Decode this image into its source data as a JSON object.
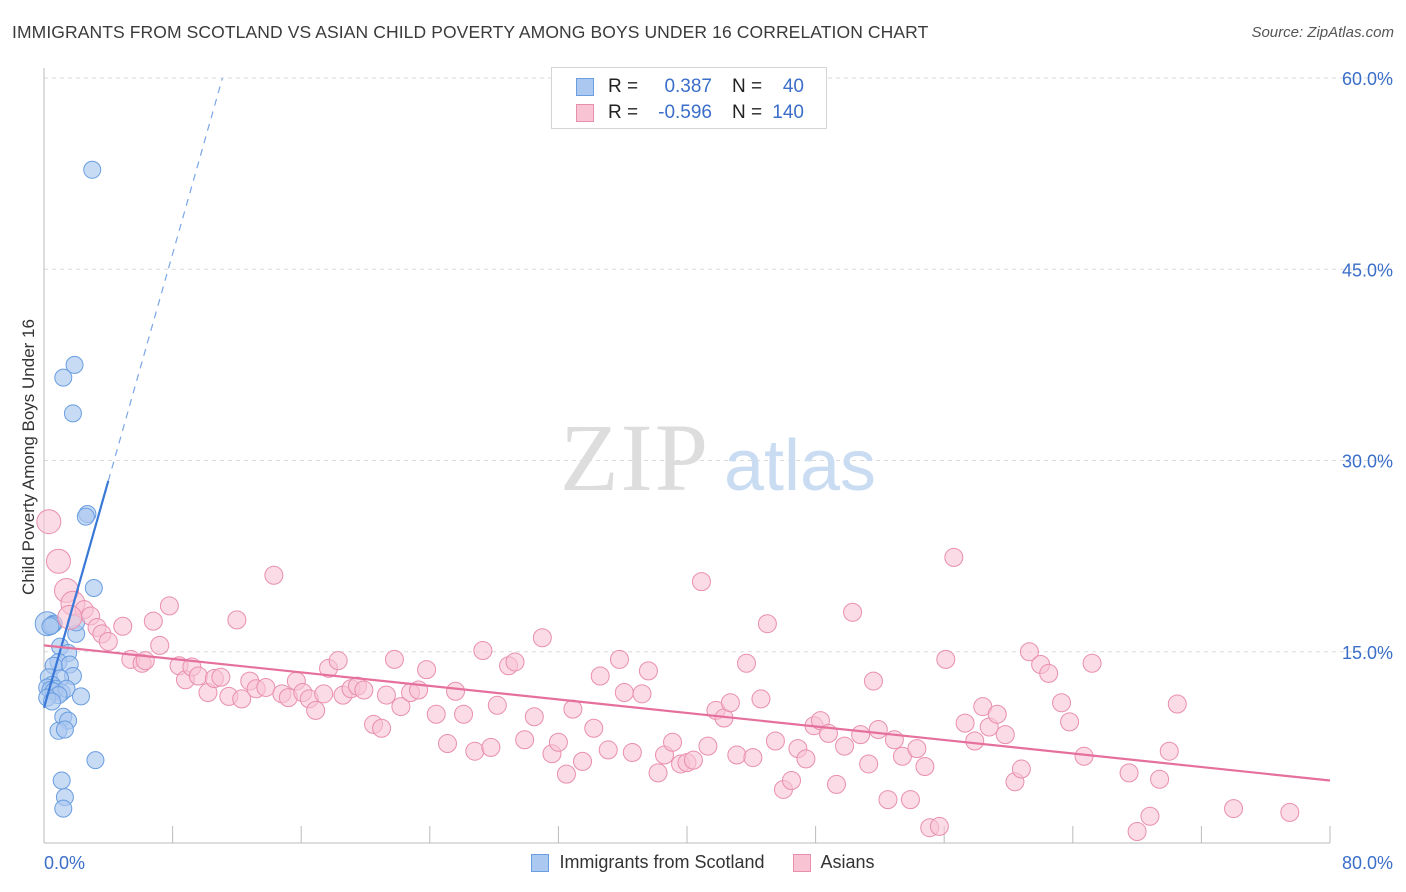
{
  "title": "IMMIGRANTS FROM SCOTLAND VS ASIAN CHILD POVERTY AMONG BOYS UNDER 16 CORRELATION CHART",
  "source": "Source: ZipAtlas.com",
  "watermark": {
    "zip": "ZIP",
    "atlas": "atlas"
  },
  "legend": {
    "rows": [
      {
        "r_label": "R =",
        "r_value": "0.387",
        "n_label": "N =",
        "n_value": "40",
        "color": "#aac8f0",
        "border": "#6a9ee0"
      },
      {
        "r_label": "R =",
        "r_value": "-0.596",
        "n_label": "N =",
        "n_value": "140",
        "color": "#f8c3d3",
        "border": "#e98fae"
      }
    ]
  },
  "bottom_legend": [
    {
      "label": "Immigrants from Scotland",
      "color": "#aac8f0",
      "border": "#6a9ee0"
    },
    {
      "label": "Asians",
      "color": "#f8c3d3",
      "border": "#e98fae"
    }
  ],
  "chart_data": {
    "type": "scatter",
    "title": "IMMIGRANTS FROM SCOTLAND VS ASIAN CHILD POVERTY AMONG BOYS UNDER 16 CORRELATION CHART",
    "xlabel": "",
    "ylabel": "Child Poverty Among Boys Under 16",
    "xlim": [
      0,
      80
    ],
    "ylim": [
      0,
      60
    ],
    "x_tick_labels": [
      "0.0%",
      "80.0%"
    ],
    "y_ticks": [
      15,
      30,
      45,
      60
    ],
    "y_tick_labels": [
      "15.0%",
      "30.0%",
      "45.0%",
      "60.0%"
    ],
    "grid": true,
    "series": [
      {
        "name": "Immigrants from Scotland",
        "color": "#6a9ee0",
        "fill": "#aac8f0",
        "trend": {
          "x0": 0.0,
          "y0": 10.6,
          "x1": 11.1,
          "y1": 60.0,
          "solid_to_x": 4.0
        },
        "points": [
          [
            3.0,
            52.8
          ],
          [
            1.9,
            37.5
          ],
          [
            1.2,
            36.5
          ],
          [
            1.8,
            33.7
          ],
          [
            2.7,
            25.8
          ],
          [
            2.6,
            25.6
          ],
          [
            3.1,
            20.0
          ],
          [
            2.0,
            16.4
          ],
          [
            0.2,
            17.2
          ],
          [
            0.6,
            17.2
          ],
          [
            0.5,
            17.1
          ],
          [
            2.0,
            17.3
          ],
          [
            0.4,
            17.0
          ],
          [
            1.0,
            15.4
          ],
          [
            1.5,
            14.9
          ],
          [
            0.9,
            14.2
          ],
          [
            1.6,
            14.0
          ],
          [
            0.6,
            13.9
          ],
          [
            0.3,
            13.0
          ],
          [
            1.8,
            13.1
          ],
          [
            1.0,
            12.9
          ],
          [
            0.5,
            12.4
          ],
          [
            0.2,
            12.2
          ],
          [
            0.7,
            12.1
          ],
          [
            0.4,
            12.0
          ],
          [
            1.1,
            11.8
          ],
          [
            0.6,
            11.9
          ],
          [
            1.4,
            12.1
          ],
          [
            0.9,
            11.6
          ],
          [
            0.2,
            11.4
          ],
          [
            0.5,
            11.1
          ],
          [
            2.3,
            11.5
          ],
          [
            1.2,
            9.9
          ],
          [
            1.5,
            9.6
          ],
          [
            0.9,
            8.8
          ],
          [
            1.3,
            8.9
          ],
          [
            3.2,
            6.5
          ],
          [
            1.1,
            4.9
          ],
          [
            1.3,
            3.6
          ],
          [
            1.2,
            2.7
          ]
        ]
      },
      {
        "name": "Asians",
        "color": "#e5709c",
        "fill": "#f8c3d3",
        "trend": {
          "x0": 0.0,
          "y0": 15.5,
          "x1": 80.0,
          "y1": 4.9
        },
        "points": [
          [
            0.3,
            25.2
          ],
          [
            0.9,
            22.1
          ],
          [
            1.4,
            19.8
          ],
          [
            1.8,
            18.8
          ],
          [
            2.5,
            18.3
          ],
          [
            2.9,
            17.8
          ],
          [
            3.3,
            16.9
          ],
          [
            3.6,
            16.4
          ],
          [
            4.0,
            15.8
          ],
          [
            4.9,
            17.0
          ],
          [
            5.4,
            14.4
          ],
          [
            6.1,
            14.1
          ],
          [
            6.3,
            14.3
          ],
          [
            6.8,
            17.4
          ],
          [
            7.2,
            15.5
          ],
          [
            7.8,
            18.6
          ],
          [
            8.4,
            13.9
          ],
          [
            8.8,
            12.8
          ],
          [
            9.2,
            13.8
          ],
          [
            9.6,
            13.1
          ],
          [
            10.2,
            11.8
          ],
          [
            10.6,
            12.9
          ],
          [
            11.0,
            13.0
          ],
          [
            11.5,
            11.5
          ],
          [
            12.0,
            17.5
          ],
          [
            12.3,
            11.3
          ],
          [
            12.8,
            12.7
          ],
          [
            13.2,
            12.1
          ],
          [
            13.8,
            12.2
          ],
          [
            14.3,
            21.0
          ],
          [
            14.8,
            11.7
          ],
          [
            15.2,
            11.4
          ],
          [
            15.7,
            12.7
          ],
          [
            16.1,
            11.8
          ],
          [
            16.5,
            11.3
          ],
          [
            16.9,
            10.4
          ],
          [
            17.4,
            11.7
          ],
          [
            17.7,
            13.7
          ],
          [
            18.3,
            14.3
          ],
          [
            18.6,
            11.6
          ],
          [
            19.1,
            12.1
          ],
          [
            19.5,
            12.3
          ],
          [
            19.9,
            12.0
          ],
          [
            20.5,
            9.3
          ],
          [
            21.0,
            9.0
          ],
          [
            21.3,
            11.6
          ],
          [
            21.8,
            14.4
          ],
          [
            22.2,
            10.7
          ],
          [
            22.8,
            11.8
          ],
          [
            23.3,
            12.0
          ],
          [
            23.8,
            13.6
          ],
          [
            24.4,
            10.1
          ],
          [
            25.1,
            7.8
          ],
          [
            25.6,
            11.9
          ],
          [
            26.1,
            10.1
          ],
          [
            26.8,
            7.2
          ],
          [
            27.3,
            15.1
          ],
          [
            27.8,
            7.5
          ],
          [
            28.2,
            10.8
          ],
          [
            28.9,
            13.9
          ],
          [
            29.3,
            14.2
          ],
          [
            29.9,
            8.1
          ],
          [
            30.5,
            9.9
          ],
          [
            31.0,
            16.1
          ],
          [
            31.6,
            7.0
          ],
          [
            32.0,
            7.9
          ],
          [
            32.5,
            5.4
          ],
          [
            32.9,
            10.5
          ],
          [
            33.5,
            6.4
          ],
          [
            34.2,
            9.0
          ],
          [
            34.6,
            13.1
          ],
          [
            35.1,
            7.3
          ],
          [
            35.8,
            14.4
          ],
          [
            36.1,
            11.8
          ],
          [
            36.6,
            7.1
          ],
          [
            37.2,
            11.7
          ],
          [
            37.6,
            13.5
          ],
          [
            38.2,
            5.5
          ],
          [
            38.6,
            6.9
          ],
          [
            39.1,
            7.9
          ],
          [
            39.6,
            6.2
          ],
          [
            40.0,
            6.3
          ],
          [
            40.4,
            6.5
          ],
          [
            40.9,
            20.5
          ],
          [
            41.3,
            7.6
          ],
          [
            41.8,
            10.4
          ],
          [
            42.3,
            9.8
          ],
          [
            42.7,
            11.0
          ],
          [
            43.1,
            6.9
          ],
          [
            43.7,
            14.1
          ],
          [
            44.1,
            6.7
          ],
          [
            44.6,
            11.3
          ],
          [
            45.0,
            17.2
          ],
          [
            45.5,
            8.0
          ],
          [
            46.0,
            4.2
          ],
          [
            46.5,
            4.9
          ],
          [
            46.9,
            7.4
          ],
          [
            47.4,
            6.6
          ],
          [
            47.9,
            9.2
          ],
          [
            48.3,
            9.6
          ],
          [
            48.8,
            8.6
          ],
          [
            49.3,
            4.6
          ],
          [
            49.8,
            7.6
          ],
          [
            50.3,
            18.1
          ],
          [
            50.8,
            8.5
          ],
          [
            51.3,
            6.2
          ],
          [
            51.6,
            12.7
          ],
          [
            51.9,
            8.9
          ],
          [
            52.5,
            3.4
          ],
          [
            52.9,
            8.1
          ],
          [
            53.4,
            6.8
          ],
          [
            53.9,
            3.4
          ],
          [
            54.3,
            7.4
          ],
          [
            54.8,
            6.0
          ],
          [
            55.1,
            1.2
          ],
          [
            55.7,
            1.3
          ],
          [
            56.1,
            14.4
          ],
          [
            56.6,
            22.4
          ],
          [
            57.3,
            9.4
          ],
          [
            57.9,
            8.0
          ],
          [
            58.4,
            10.7
          ],
          [
            58.8,
            9.1
          ],
          [
            59.3,
            10.1
          ],
          [
            59.8,
            8.5
          ],
          [
            60.4,
            4.8
          ],
          [
            60.8,
            5.8
          ],
          [
            61.3,
            15.0
          ],
          [
            62.0,
            14.0
          ],
          [
            62.5,
            13.3
          ],
          [
            63.3,
            11.0
          ],
          [
            63.8,
            9.5
          ],
          [
            64.7,
            6.8
          ],
          [
            65.2,
            14.1
          ],
          [
            67.5,
            5.5
          ],
          [
            68.0,
            0.9
          ],
          [
            68.8,
            2.1
          ],
          [
            69.4,
            5.0
          ],
          [
            70.0,
            7.2
          ],
          [
            70.5,
            10.9
          ],
          [
            74.0,
            2.7
          ],
          [
            77.5,
            2.4
          ],
          [
            1.6,
            17.7
          ]
        ]
      }
    ]
  }
}
